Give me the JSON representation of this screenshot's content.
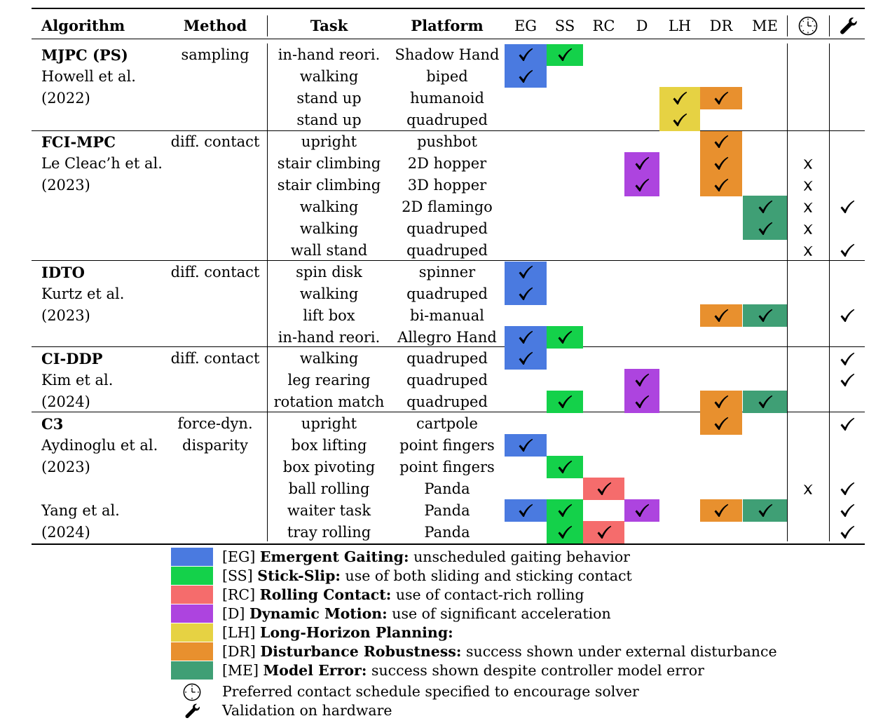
{
  "colors": {
    "EG": "#4a7ae0",
    "SS": "#14d14a",
    "RC": "#f56c6c",
    "D": "#ad44df",
    "LH": "#e6d243",
    "DR": "#e8902e",
    "ME": "#3f9f75"
  },
  "header": {
    "algorithm": "Algorithm",
    "method": "Method",
    "task": "Task",
    "platform": "Platform",
    "cols": [
      "EG",
      "SS",
      "RC",
      "D",
      "LH",
      "DR",
      "ME"
    ],
    "clock_icon": "clock-icon",
    "wrench_icon": "wrench-icon"
  },
  "groups": [
    {
      "name": "MJPC (PS)",
      "author": "Howell et al.",
      "year": "(2022)",
      "method": [
        "sampling"
      ],
      "rows": [
        {
          "task": "in-hand reori.",
          "platform": "Shadow Hand",
          "marks": [
            "EG",
            "SS"
          ],
          "schedule": false,
          "hardware": false
        },
        {
          "task": "walking",
          "platform": "biped",
          "marks": [
            "EG"
          ],
          "schedule": false,
          "hardware": false
        },
        {
          "task": "stand up",
          "platform": "humanoid",
          "marks": [
            "LH",
            "DR"
          ],
          "schedule": false,
          "hardware": false
        },
        {
          "task": "stand up",
          "platform": "quadruped",
          "marks": [
            "LH"
          ],
          "schedule": false,
          "hardware": false
        }
      ]
    },
    {
      "name": "FCI-MPC",
      "author": "Le Cleac’h et al.",
      "year": "(2023)",
      "method": [
        "diff. contact"
      ],
      "rows": [
        {
          "task": "upright",
          "platform": "pushbot",
          "marks": [
            "DR"
          ],
          "schedule": false,
          "hardware": false
        },
        {
          "task": "stair climbing",
          "platform": "2D hopper",
          "marks": [
            "D",
            "DR"
          ],
          "schedule": true,
          "hardware": false
        },
        {
          "task": "stair climbing",
          "platform": "3D hopper",
          "marks": [
            "D",
            "DR"
          ],
          "schedule": true,
          "hardware": false
        },
        {
          "task": "walking",
          "platform": "2D flamingo",
          "marks": [
            "ME"
          ],
          "schedule": true,
          "hardware": true
        },
        {
          "task": "walking",
          "platform": "quadruped",
          "marks": [
            "ME"
          ],
          "schedule": true,
          "hardware": false
        },
        {
          "task": "wall stand",
          "platform": "quadruped",
          "marks": [],
          "schedule": true,
          "hardware": true
        }
      ]
    },
    {
      "name": "IDTO",
      "author": "Kurtz et al.",
      "year": "(2023)",
      "method": [
        "diff. contact"
      ],
      "rows": [
        {
          "task": "spin disk",
          "platform": "spinner",
          "marks": [
            "EG"
          ],
          "schedule": false,
          "hardware": false
        },
        {
          "task": "walking",
          "platform": "quadruped",
          "marks": [
            "EG"
          ],
          "schedule": false,
          "hardware": false
        },
        {
          "task": "lift box",
          "platform": "bi-manual",
          "marks": [
            "DR",
            "ME"
          ],
          "schedule": false,
          "hardware": true
        },
        {
          "task": "in-hand reori.",
          "platform": "Allegro Hand",
          "marks": [
            "EG",
            "SS"
          ],
          "schedule": false,
          "hardware": false
        }
      ]
    },
    {
      "name": "CI-DDP",
      "author": "Kim et al.",
      "year": "(2024)",
      "method": [
        "diff. contact"
      ],
      "rows": [
        {
          "task": "walking",
          "platform": "quadruped",
          "marks": [
            "EG"
          ],
          "schedule": false,
          "hardware": true
        },
        {
          "task": "leg rearing",
          "platform": "quadruped",
          "marks": [
            "D"
          ],
          "schedule": false,
          "hardware": true
        },
        {
          "task": "rotation match",
          "platform": "quadruped",
          "marks": [
            "SS",
            "D",
            "DR",
            "ME"
          ],
          "schedule": false,
          "hardware": false
        }
      ]
    },
    {
      "name": "C3",
      "author": "Aydinoglu et al.",
      "year": "(2023)",
      "author2": "Yang et al.",
      "year2": "(2024)",
      "method": [
        "force-dyn.",
        "disparity"
      ],
      "rows": [
        {
          "task": "upright",
          "platform": "cartpole",
          "marks": [
            "DR"
          ],
          "schedule": false,
          "hardware": true
        },
        {
          "task": "box lifting",
          "platform": "point fingers",
          "marks": [
            "EG"
          ],
          "schedule": false,
          "hardware": false
        },
        {
          "task": "box pivoting",
          "platform": "point fingers",
          "marks": [
            "SS"
          ],
          "schedule": false,
          "hardware": false
        },
        {
          "task": "ball rolling",
          "platform": "Panda",
          "marks": [
            "RC"
          ],
          "schedule": true,
          "hardware": true
        },
        {
          "task": "waiter task",
          "platform": "Panda",
          "marks": [
            "EG",
            "SS",
            "D",
            "DR",
            "ME"
          ],
          "schedule": false,
          "hardware": true
        },
        {
          "task": "tray rolling",
          "platform": "Panda",
          "marks": [
            "SS",
            "RC"
          ],
          "schedule": false,
          "hardware": true
        }
      ]
    }
  ],
  "legend": [
    {
      "key": "EG",
      "abbr": "[EG]",
      "title": "Emergent Gaiting:",
      "desc": "unscheduled gaiting behavior"
    },
    {
      "key": "SS",
      "abbr": "[SS]",
      "title": "Stick-Slip:",
      "desc": "use of both sliding and sticking contact"
    },
    {
      "key": "RC",
      "abbr": "[RC]",
      "title": "Rolling Contact:",
      "desc": "use of contact-rich rolling"
    },
    {
      "key": "D",
      "abbr": "[D]",
      "title": "Dynamic Motion:",
      "desc": "use of significant acceleration"
    },
    {
      "key": "LH",
      "abbr": "[LH]",
      "title": "Long-Horizon Planning:",
      "desc": ""
    },
    {
      "key": "DR",
      "abbr": "[DR]",
      "title": "Disturbance Robustness:",
      "desc": "success shown under external disturbance"
    },
    {
      "key": "ME",
      "abbr": "[ME]",
      "title": "Model Error:",
      "desc": "success shown despite controller model error"
    }
  ],
  "legend_icons": [
    {
      "icon": "clock-icon",
      "text": "Preferred contact schedule specified to encourage solver"
    },
    {
      "icon": "wrench-icon",
      "text": "Validation on hardware"
    }
  ]
}
